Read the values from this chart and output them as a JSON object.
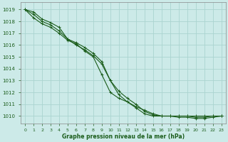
{
  "title": "Graphe pression niveau de la mer (hPa)",
  "bg_color": "#cceae8",
  "grid_color": "#aad4d0",
  "line_color": "#1a5c1a",
  "x_ticks": [
    0,
    1,
    2,
    3,
    4,
    5,
    6,
    7,
    8,
    9,
    10,
    11,
    12,
    13,
    14,
    15,
    16,
    17,
    18,
    19,
    20,
    21,
    22,
    23
  ],
  "y_ticks": [
    1010,
    1011,
    1012,
    1013,
    1014,
    1015,
    1016,
    1017,
    1018,
    1019
  ],
  "ylim": [
    1009.4,
    1019.6
  ],
  "xlim": [
    -0.5,
    23.5
  ],
  "line1": [
    1019.0,
    1018.8,
    1018.2,
    1017.9,
    1017.5,
    1016.5,
    1016.2,
    1015.8,
    1015.3,
    1014.6,
    1013.0,
    1011.8,
    1011.2,
    1010.7,
    1010.2,
    1010.0,
    1010.0,
    1010.0,
    1010.0,
    1010.0,
    1010.0,
    1010.0,
    1010.0,
    1010.0
  ],
  "line2": [
    1019.0,
    1018.6,
    1018.0,
    1017.7,
    1017.2,
    1016.5,
    1016.0,
    1015.6,
    1015.1,
    1014.4,
    1013.0,
    1012.1,
    1011.5,
    1011.0,
    1010.4,
    1010.1,
    1010.0,
    1010.0,
    1010.0,
    1010.0,
    1009.9,
    1009.9,
    1010.0,
    1010.0
  ],
  "line3": [
    1019.0,
    1018.3,
    1017.8,
    1017.5,
    1017.0,
    1016.4,
    1016.1,
    1015.5,
    1015.0,
    1013.5,
    1012.0,
    1011.5,
    1011.2,
    1010.8,
    1010.5,
    1010.2,
    1010.0,
    1010.0,
    1009.9,
    1009.9,
    1009.8,
    1009.8,
    1009.9,
    1010.0
  ]
}
